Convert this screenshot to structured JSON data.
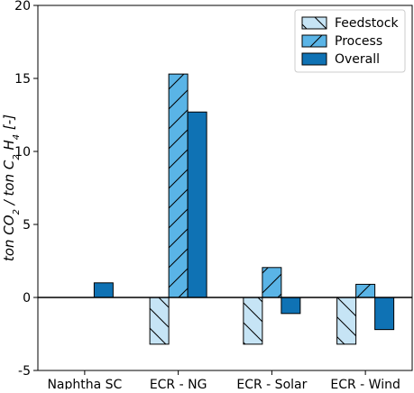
{
  "chart_data": {
    "type": "bar",
    "categories": [
      "Naphtha SC",
      "ECR - NG",
      "ECR - Solar",
      "ECR - Wind"
    ],
    "series": [
      {
        "name": "Feedstock",
        "values": [
          0,
          -3.2,
          -3.2,
          -3.2
        ],
        "color": "#c6e4f5",
        "hatch": "backslash"
      },
      {
        "name": "Process",
        "values": [
          0,
          15.3,
          2.05,
          0.9
        ],
        "color": "#5ab4e6",
        "hatch": "slash"
      },
      {
        "name": "Overall",
        "values": [
          1.0,
          12.7,
          -1.1,
          -2.2
        ],
        "color": "#0f72b4",
        "hatch": "none"
      }
    ],
    "ylabel": {
      "parts": [
        {
          "t": "ton CO"
        },
        {
          "t": "2",
          "sub": true
        },
        {
          "t": " / ton C"
        },
        {
          "t": "2",
          "sub": true
        },
        {
          "t": " H"
        },
        {
          "t": "4",
          "sub": true
        },
        {
          "t": " [-]"
        }
      ]
    },
    "ylim": [
      -5,
      20
    ],
    "yticks": [
      -5,
      0,
      5,
      10,
      15,
      20
    ],
    "zero_line": true,
    "legend": {
      "position": "top-right"
    },
    "grid": false
  }
}
